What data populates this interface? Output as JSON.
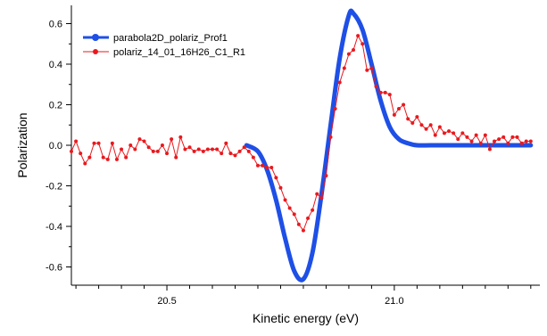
{
  "chart_data": {
    "type": "line",
    "title": "",
    "xlabel": "Kinetic energy (eV)",
    "ylabel": "Polarization",
    "xlim": [
      20.29,
      21.32
    ],
    "ylim": [
      -0.69,
      0.69
    ],
    "grid": false,
    "legend": "top-left",
    "x_ticks_major": [
      20.5,
      21.0
    ],
    "x_tick_labels": [
      "20.5",
      "21.0"
    ],
    "y_ticks": [
      -0.6,
      -0.4,
      -0.2,
      0.0,
      0.2,
      0.4,
      0.6
    ],
    "y_tick_labels": [
      "-0.6",
      "-0.4",
      "-0.2",
      "0.0",
      "0.2",
      "0.4",
      "0.6"
    ],
    "series": [
      {
        "name": "parabola2D_polariz_Prof1",
        "color": "#1e4fe6",
        "style": "thick-line-with-marker",
        "x": [
          20.675,
          20.7,
          20.72,
          20.74,
          20.76,
          20.78,
          20.8,
          20.82,
          20.84,
          20.86,
          20.88,
          20.9,
          20.91,
          20.93,
          20.95,
          20.97,
          20.99,
          21.01,
          21.03,
          21.05,
          21.08,
          21.12,
          21.18,
          21.25,
          21.3
        ],
        "values": [
          0.0,
          -0.03,
          -0.12,
          -0.27,
          -0.46,
          -0.62,
          -0.66,
          -0.53,
          -0.24,
          0.1,
          0.43,
          0.64,
          0.65,
          0.57,
          0.4,
          0.22,
          0.09,
          0.03,
          0.01,
          0.0,
          0.0,
          0.0,
          0.0,
          0.0,
          0.0
        ]
      },
      {
        "name": "polariz_14_01_16H26_C1_R1",
        "color": "#e8191e",
        "style": "line-with-dots",
        "x": [
          20.29,
          20.3,
          20.31,
          20.32,
          20.33,
          20.34,
          20.35,
          20.36,
          20.37,
          20.38,
          20.39,
          20.4,
          20.41,
          20.42,
          20.43,
          20.44,
          20.45,
          20.46,
          20.47,
          20.48,
          20.49,
          20.5,
          20.51,
          20.52,
          20.53,
          20.54,
          20.55,
          20.56,
          20.57,
          20.58,
          20.59,
          20.6,
          20.61,
          20.62,
          20.63,
          20.64,
          20.65,
          20.66,
          20.67,
          20.68,
          20.69,
          20.7,
          20.71,
          20.72,
          20.73,
          20.74,
          20.75,
          20.76,
          20.77,
          20.78,
          20.79,
          20.8,
          20.81,
          20.82,
          20.83,
          20.84,
          20.85,
          20.86,
          20.87,
          20.88,
          20.89,
          20.9,
          20.91,
          20.92,
          20.93,
          20.94,
          20.95,
          20.96,
          20.97,
          20.98,
          20.99,
          21.0,
          21.01,
          21.02,
          21.03,
          21.04,
          21.05,
          21.06,
          21.07,
          21.08,
          21.09,
          21.1,
          21.11,
          21.12,
          21.13,
          21.14,
          21.15,
          21.16,
          21.17,
          21.18,
          21.19,
          21.2,
          21.21,
          21.22,
          21.23,
          21.24,
          21.25,
          21.26,
          21.27,
          21.28,
          21.29,
          21.3
        ],
        "values": [
          -0.03,
          0.02,
          -0.04,
          -0.09,
          -0.06,
          0.01,
          0.01,
          -0.06,
          -0.07,
          0.01,
          -0.07,
          -0.02,
          -0.06,
          0.0,
          -0.02,
          0.03,
          0.02,
          -0.01,
          -0.03,
          -0.03,
          0.0,
          -0.04,
          0.03,
          -0.06,
          0.04,
          -0.02,
          -0.01,
          -0.03,
          -0.02,
          -0.03,
          -0.02,
          -0.02,
          -0.02,
          -0.04,
          0.01,
          -0.04,
          -0.05,
          -0.03,
          -0.01,
          -0.03,
          -0.06,
          -0.1,
          -0.1,
          -0.11,
          -0.11,
          -0.16,
          -0.21,
          -0.27,
          -0.31,
          -0.34,
          -0.39,
          -0.42,
          -0.36,
          -0.32,
          -0.24,
          -0.26,
          -0.15,
          0.04,
          0.18,
          0.31,
          0.38,
          0.45,
          0.47,
          0.54,
          0.5,
          0.37,
          0.38,
          0.29,
          0.26,
          0.26,
          0.25,
          0.15,
          0.18,
          0.2,
          0.13,
          0.11,
          0.14,
          0.1,
          0.08,
          0.1,
          0.05,
          0.09,
          0.06,
          0.07,
          0.06,
          0.03,
          0.06,
          0.04,
          0.02,
          0.05,
          0.01,
          0.05,
          -0.02,
          0.02,
          0.03,
          0.04,
          0.01,
          0.04,
          0.04,
          0.01,
          0.02,
          0.02
        ]
      }
    ]
  }
}
